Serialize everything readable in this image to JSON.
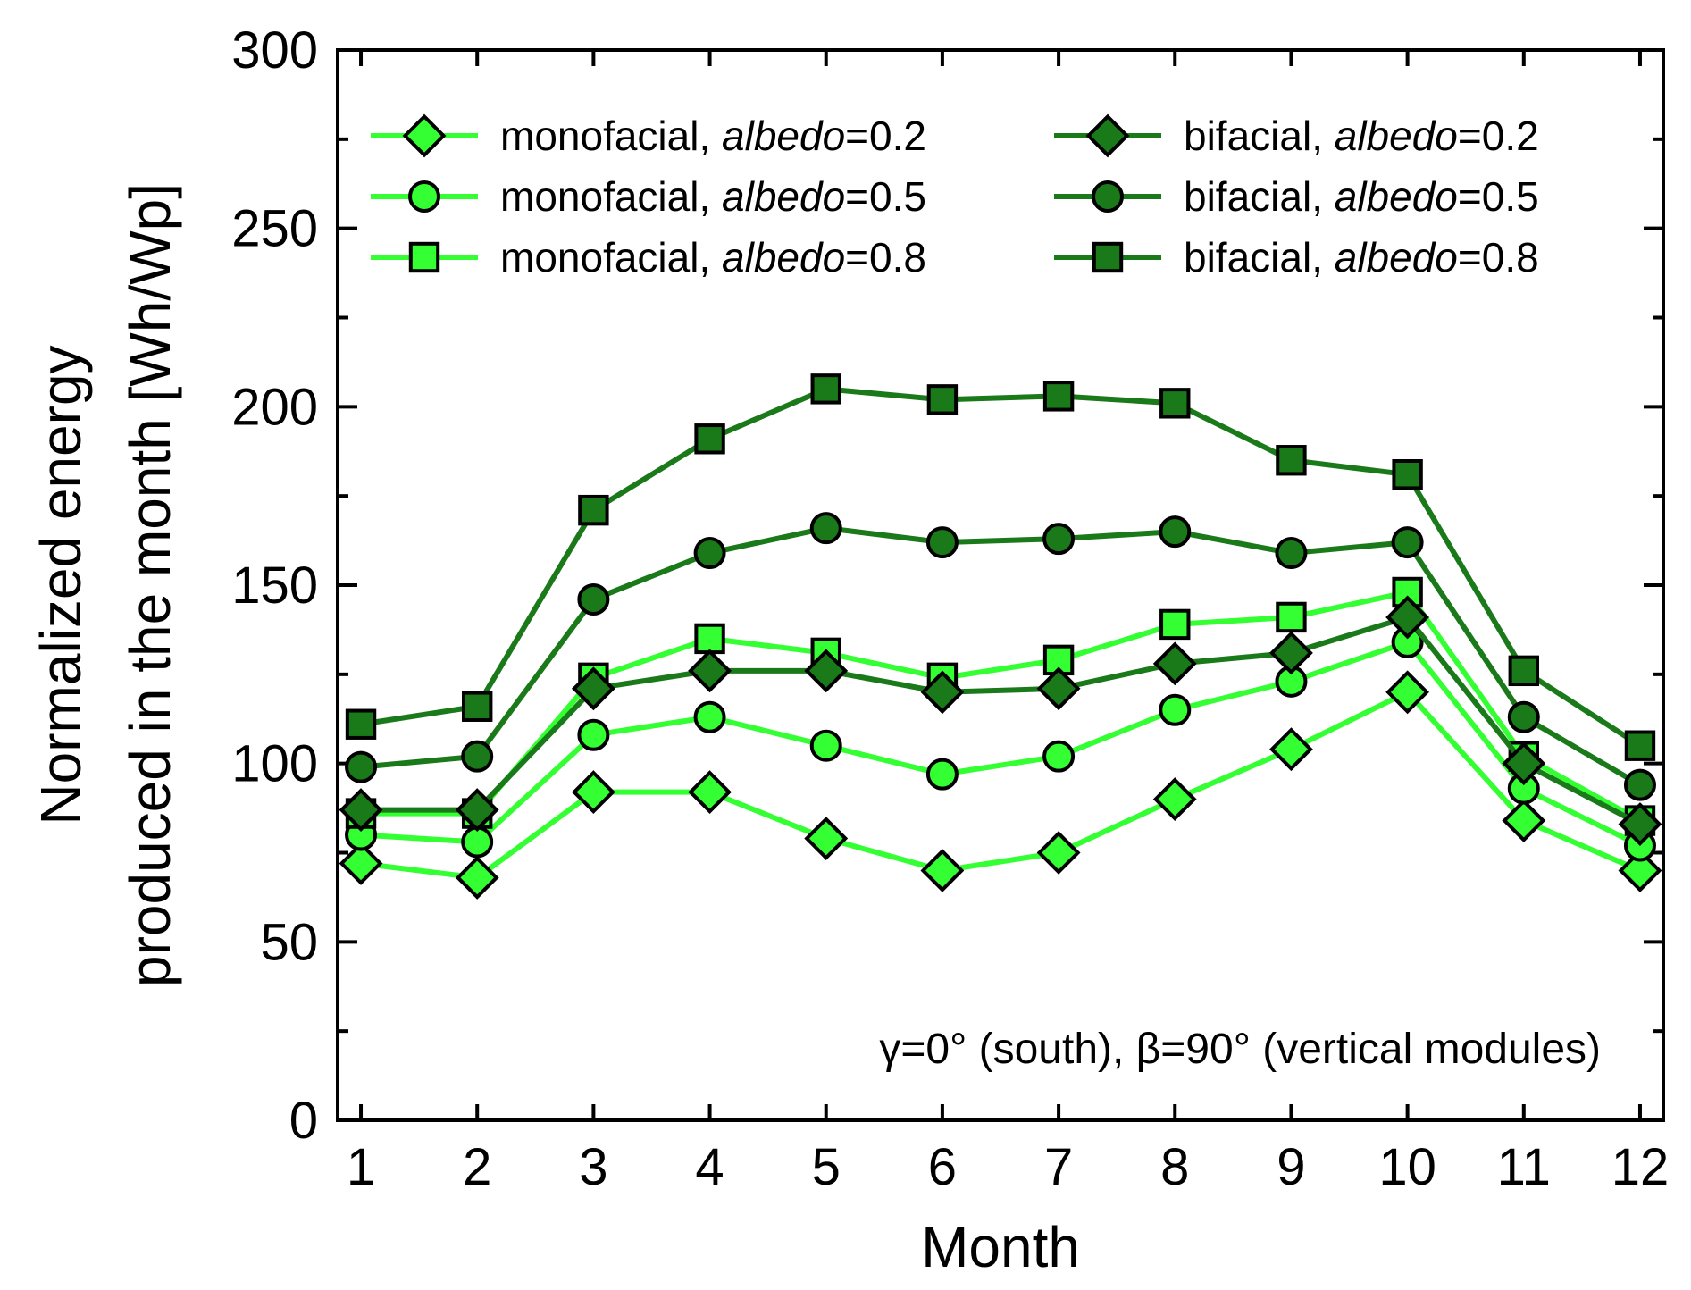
{
  "chart_data": {
    "type": "line",
    "title": "",
    "xlabel": "Month",
    "ylabel_lines": [
      "Normalized energy",
      "produced in the month [Wh/Wp]"
    ],
    "xlim": [
      0.8,
      12.2
    ],
    "ylim": [
      0,
      300
    ],
    "x_ticks": [
      1,
      2,
      3,
      4,
      5,
      6,
      7,
      8,
      9,
      10,
      11,
      12
    ],
    "y_ticks": [
      0,
      50,
      100,
      150,
      200,
      250,
      300
    ],
    "y_minor_step": 25,
    "grid": false,
    "legend_position": "top",
    "series": [
      {
        "name_prefix": "monofacial, ",
        "name_italic": "albedo",
        "name_suffix": "=0.2",
        "marker": "diamond",
        "color": "#33ff33",
        "x": [
          1,
          2,
          3,
          4,
          5,
          6,
          7,
          8,
          9,
          10,
          11,
          12
        ],
        "values": [
          72,
          68,
          92,
          92,
          79,
          70,
          75,
          90,
          104,
          120,
          84,
          70
        ]
      },
      {
        "name_prefix": "monofacial, ",
        "name_italic": "albedo",
        "name_suffix": "=0.5",
        "marker": "circle",
        "color": "#33ff33",
        "x": [
          1,
          2,
          3,
          4,
          5,
          6,
          7,
          8,
          9,
          10,
          11,
          12
        ],
        "values": [
          80,
          78,
          108,
          113,
          105,
          97,
          102,
          115,
          123,
          134,
          93,
          77
        ]
      },
      {
        "name_prefix": "monofacial, ",
        "name_italic": "albedo",
        "name_suffix": "=0.8",
        "marker": "square",
        "color": "#33ff33",
        "x": [
          1,
          2,
          3,
          4,
          5,
          6,
          7,
          8,
          9,
          10,
          11,
          12
        ],
        "values": [
          86,
          86,
          124,
          135,
          131,
          124,
          129,
          139,
          141,
          148,
          102,
          84
        ]
      },
      {
        "name_prefix": "bifacial, ",
        "name_italic": "albedo",
        "name_suffix": "=0.2",
        "marker": "diamond",
        "color": "#1a7a1a",
        "x": [
          1,
          2,
          3,
          4,
          5,
          6,
          7,
          8,
          9,
          10,
          11,
          12
        ],
        "values": [
          87,
          87,
          121,
          126,
          126,
          120,
          121,
          128,
          131,
          141,
          100,
          83
        ]
      },
      {
        "name_prefix": "bifacial, ",
        "name_italic": "albedo",
        "name_suffix": "=0.5",
        "marker": "circle",
        "color": "#1a7a1a",
        "x": [
          1,
          2,
          3,
          4,
          5,
          6,
          7,
          8,
          9,
          10,
          11,
          12
        ],
        "values": [
          99,
          102,
          146,
          159,
          166,
          162,
          163,
          165,
          159,
          162,
          113,
          94
        ]
      },
      {
        "name_prefix": "bifacial, ",
        "name_italic": "albedo",
        "name_suffix": "=0.8",
        "marker": "square",
        "color": "#1a7a1a",
        "x": [
          1,
          2,
          3,
          4,
          5,
          6,
          7,
          8,
          9,
          10,
          11,
          12
        ],
        "values": [
          111,
          116,
          171,
          191,
          205,
          202,
          203,
          201,
          185,
          181,
          126,
          105
        ]
      }
    ],
    "annotation": "γ=0° (south), β=90° (vertical modules)"
  }
}
